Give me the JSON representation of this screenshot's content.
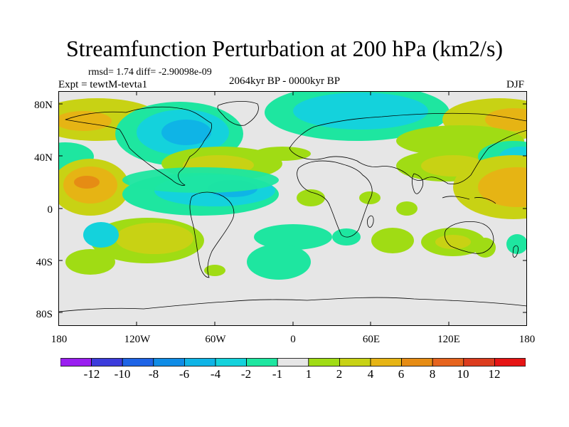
{
  "title": "Streamfunction Perturbation at 200 hPa (km2/s)",
  "stats": {
    "text": "rmsd= 1.74 diff= -2.90098e-09"
  },
  "experiment": {
    "text": "Expt = tewtM-tevta1"
  },
  "period": {
    "text": "2064kyr BP - 0000kyr BP"
  },
  "season": {
    "text": "DJF"
  },
  "axes": {
    "y_ticks": [
      "80N",
      "40N",
      "0",
      "40S",
      "80S"
    ],
    "x_ticks": [
      "180",
      "120W",
      "60W",
      "0",
      "60E",
      "120E",
      "180"
    ]
  },
  "colorbar": {
    "labels": [
      "-12",
      "-10",
      "-8",
      "-6",
      "-4",
      "-2",
      "-1",
      "1",
      "2",
      "4",
      "6",
      "8",
      "10",
      "12"
    ],
    "colors": [
      "#9a1ef0",
      "#3c3cdc",
      "#1e64e6",
      "#0f8ce6",
      "#0fb4e6",
      "#14d2dc",
      "#1ee6a0",
      "#e6e6e6",
      "#a0dc14",
      "#c8d214",
      "#e6b414",
      "#e68c14",
      "#e6641e",
      "#dc3c1e",
      "#e61414"
    ]
  },
  "chart_data": {
    "type": "map-contour",
    "title": "Streamfunction Perturbation at 200 hPa (km2/s)",
    "variable": "Streamfunction Perturbation",
    "level": "200 hPa",
    "units": "km2/s",
    "rmsd": 1.74,
    "diff": -2.90098e-09,
    "experiment": "tewtM-tevta1",
    "period": "2064kyr BP - 0000kyr BP",
    "season": "DJF",
    "lon_range": [
      -180,
      180
    ],
    "lat_range": [
      -90,
      90
    ],
    "contour_levels": [
      -12,
      -10,
      -8,
      -6,
      -4,
      -2,
      -1,
      1,
      2,
      4,
      6,
      8,
      10,
      12
    ]
  }
}
